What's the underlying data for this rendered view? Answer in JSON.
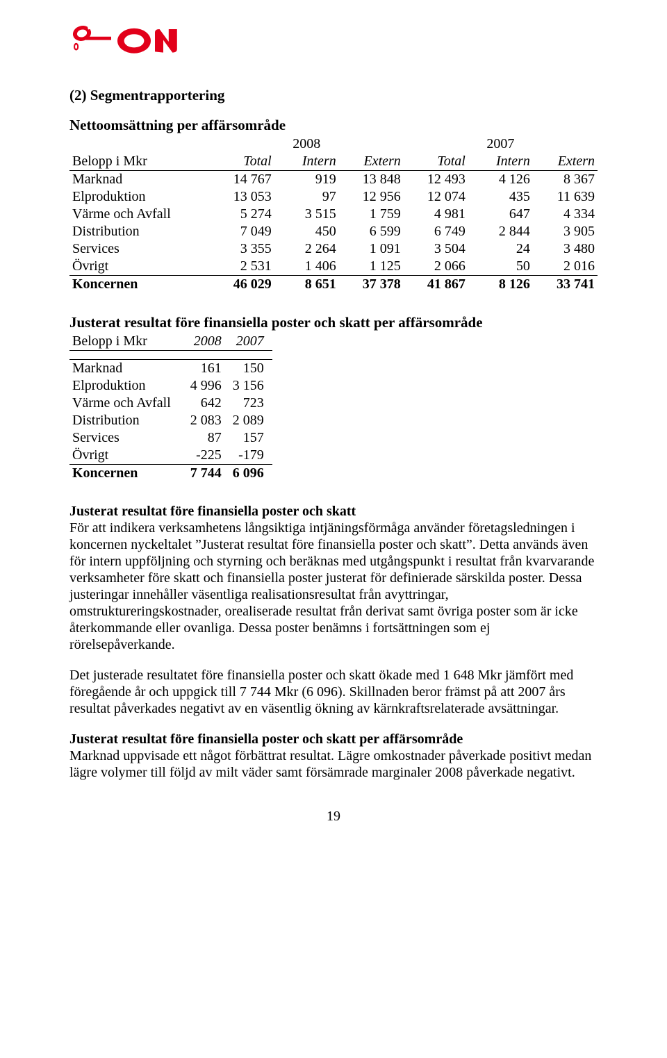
{
  "logo": {
    "color": "#e2001a"
  },
  "section_title": "(2) Segmentrapportering",
  "table1": {
    "title": "Nettoomsättning per affärsområde",
    "year_left": "2008",
    "year_right": "2007",
    "row_label": "Belopp i Mkr",
    "col_total": "Total",
    "col_intern": "Intern",
    "col_extern": "Extern",
    "rows": [
      {
        "label": "Marknad",
        "c": [
          "14 767",
          "919",
          "13 848",
          "12 493",
          "4 126",
          "8 367"
        ]
      },
      {
        "label": "Elproduktion",
        "c": [
          "13 053",
          "97",
          "12 956",
          "12 074",
          "435",
          "11 639"
        ]
      },
      {
        "label": "Värme och Avfall",
        "c": [
          "5 274",
          "3 515",
          "1 759",
          "4 981",
          "647",
          "4 334"
        ]
      },
      {
        "label": "Distribution",
        "c": [
          "7 049",
          "450",
          "6 599",
          "6 749",
          "2 844",
          "3 905"
        ]
      },
      {
        "label": "Services",
        "c": [
          "3 355",
          "2 264",
          "1 091",
          "3 504",
          "24",
          "3 480"
        ]
      },
      {
        "label": "Övrigt",
        "c": [
          "2 531",
          "1 406",
          "1 125",
          "2 066",
          "50",
          "2 016"
        ]
      }
    ],
    "total": {
      "label": "Koncernen",
      "c": [
        "46 029",
        "8 651",
        "37 378",
        "41 867",
        "8 126",
        "33 741"
      ]
    }
  },
  "table2": {
    "title": "Justerat resultat före finansiella poster och skatt per affärsområde",
    "row_label": "Belopp i Mkr",
    "col1": "2008",
    "col2": "2007",
    "rows": [
      {
        "label": "Marknad",
        "c": [
          "161",
          "150"
        ]
      },
      {
        "label": "Elproduktion",
        "c": [
          "4 996",
          "3 156"
        ]
      },
      {
        "label": "Värme och Avfall",
        "c": [
          "642",
          "723"
        ]
      },
      {
        "label": "Distribution",
        "c": [
          "2 083",
          "2 089"
        ]
      },
      {
        "label": "Services",
        "c": [
          "87",
          "157"
        ]
      },
      {
        "label": "Övrigt",
        "c": [
          "-225",
          "-179"
        ]
      }
    ],
    "total": {
      "label": "Koncernen",
      "c": [
        "7 744",
        "6 096"
      ]
    }
  },
  "para1": {
    "lead": "Justerat resultat före finansiella poster och skatt",
    "text": "För att indikera verksamhetens långsiktiga intjäningsförmåga använder företagsledningen i koncernen nyckeltalet ”Justerat resultat före finansiella poster och skatt”. Detta används även för intern uppföljning och styrning och beräknas med utgångspunkt i resultat från kvarvarande verksamheter före skatt och finansiella poster justerat för definierade särskilda poster. Dessa justeringar innehåller väsentliga realisationsresultat från avyttringar, omstruktureringskostnader, orealiserade resultat från derivat samt övriga poster som är icke återkommande eller ovanliga. Dessa poster benämns i fortsättningen som ej rörelsepåverkande."
  },
  "para2": {
    "text": "Det justerade resultatet före finansiella poster och skatt ökade med 1 648 Mkr jämfört med föregående år och uppgick till 7 744 Mkr (6 096). Skillnaden beror främst på att 2007 års resultat påverkades negativt av en väsentlig ökning av kärnkraftsrelaterade avsättningar."
  },
  "para3": {
    "lead": "Justerat resultat före finansiella poster och skatt per affärsområde",
    "text": "Marknad uppvisade ett något förbättrat resultat. Lägre omkostnader påverkade positivt medan lägre volymer till följd av milt väder samt försämrade marginaler 2008 påverkade negativt."
  },
  "page_number": "19"
}
